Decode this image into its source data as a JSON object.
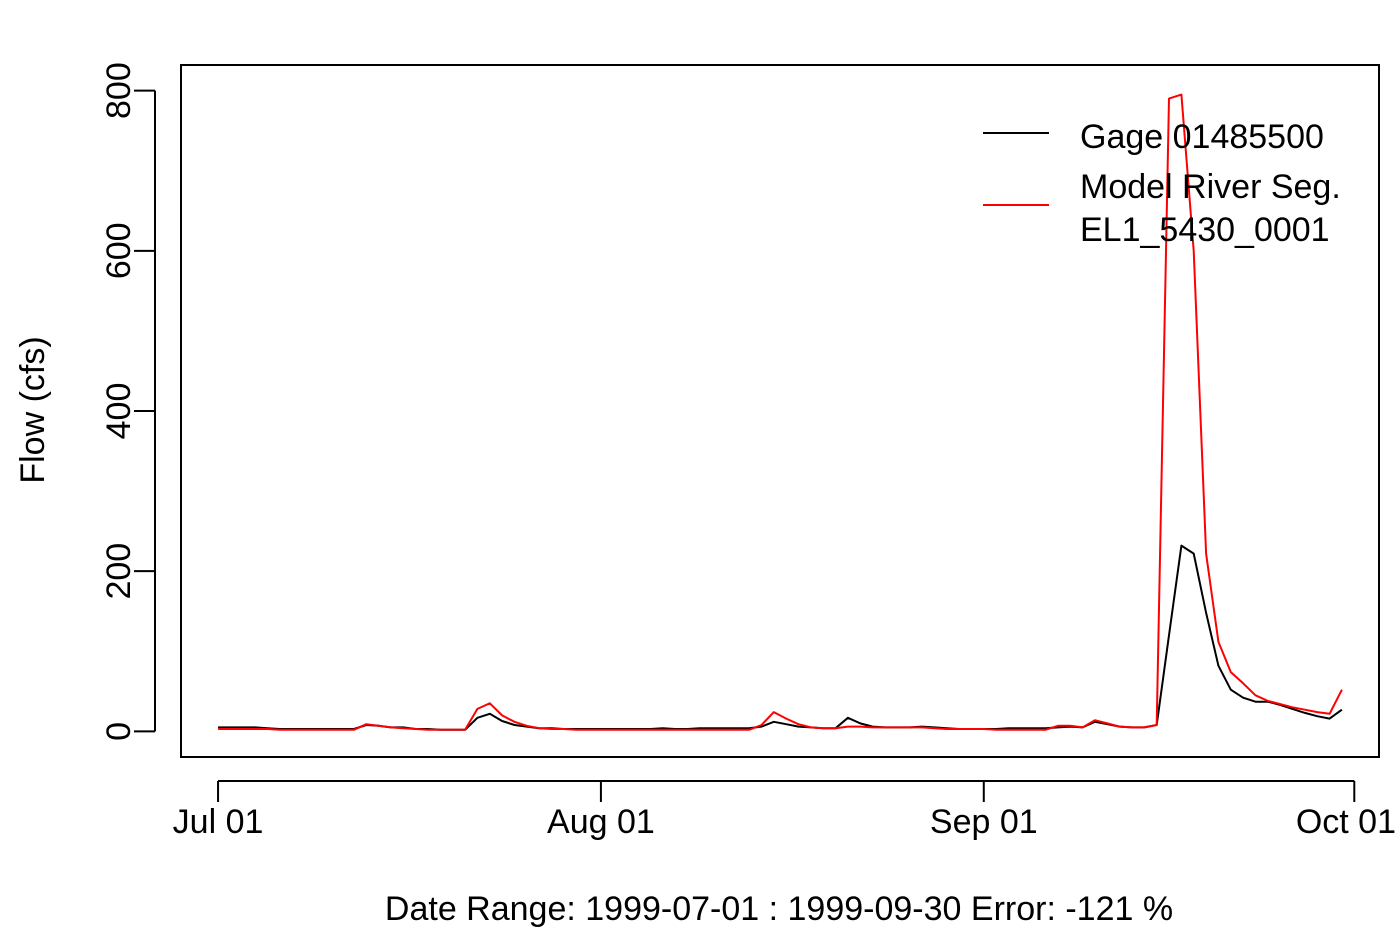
{
  "chart_data": {
    "type": "line",
    "title": "",
    "xlabel": "Date Range: 1999-07-01 : 1999-09-30   Error: -121 %",
    "ylabel": "Flow (cfs)",
    "x_ticks": [
      {
        "date": "1999-07-01",
        "label": "Jul 01"
      },
      {
        "date": "1999-08-01",
        "label": "Aug 01"
      },
      {
        "date": "1999-09-01",
        "label": "Sep 01"
      },
      {
        "date": "1999-10-01",
        "label": "Oct 01"
      }
    ],
    "y_ticks": [
      0,
      200,
      400,
      600,
      800
    ],
    "xlim": [
      "1999-06-28",
      "1999-10-03"
    ],
    "ylim": [
      -32,
      832
    ],
    "grid": false,
    "legend_position": "top-right",
    "series": [
      {
        "name": "Gage 01485500",
        "color": "#000000",
        "points": [
          [
            "1999-07-01",
            5
          ],
          [
            "1999-07-02",
            5
          ],
          [
            "1999-07-03",
            5
          ],
          [
            "1999-07-04",
            5
          ],
          [
            "1999-07-05",
            4
          ],
          [
            "1999-07-06",
            3
          ],
          [
            "1999-07-07",
            3
          ],
          [
            "1999-07-08",
            3
          ],
          [
            "1999-07-09",
            3
          ],
          [
            "1999-07-10",
            3
          ],
          [
            "1999-07-11",
            3
          ],
          [
            "1999-07-12",
            3
          ],
          [
            "1999-07-13",
            8
          ],
          [
            "1999-07-14",
            7
          ],
          [
            "1999-07-15",
            5
          ],
          [
            "1999-07-16",
            5
          ],
          [
            "1999-07-17",
            3
          ],
          [
            "1999-07-18",
            3
          ],
          [
            "1999-07-19",
            2
          ],
          [
            "1999-07-20",
            2
          ],
          [
            "1999-07-21",
            2
          ],
          [
            "1999-07-22",
            17
          ],
          [
            "1999-07-23",
            22
          ],
          [
            "1999-07-24",
            13
          ],
          [
            "1999-07-25",
            8
          ],
          [
            "1999-07-26",
            6
          ],
          [
            "1999-07-27",
            4
          ],
          [
            "1999-07-28",
            4
          ],
          [
            "1999-07-29",
            3
          ],
          [
            "1999-07-30",
            3
          ],
          [
            "1999-07-31",
            3
          ],
          [
            "1999-08-01",
            3
          ],
          [
            "1999-08-02",
            3
          ],
          [
            "1999-08-03",
            3
          ],
          [
            "1999-08-04",
            3
          ],
          [
            "1999-08-05",
            3
          ],
          [
            "1999-08-06",
            4
          ],
          [
            "1999-08-07",
            3
          ],
          [
            "1999-08-08",
            3
          ],
          [
            "1999-08-09",
            4
          ],
          [
            "1999-08-10",
            4
          ],
          [
            "1999-08-11",
            4
          ],
          [
            "1999-08-12",
            4
          ],
          [
            "1999-08-13",
            4
          ],
          [
            "1999-08-14",
            6
          ],
          [
            "1999-08-15",
            12
          ],
          [
            "1999-08-16",
            9
          ],
          [
            "1999-08-17",
            6
          ],
          [
            "1999-08-18",
            5
          ],
          [
            "1999-08-19",
            4
          ],
          [
            "1999-08-20",
            4
          ],
          [
            "1999-08-21",
            17
          ],
          [
            "1999-08-22",
            10
          ],
          [
            "1999-08-23",
            6
          ],
          [
            "1999-08-24",
            5
          ],
          [
            "1999-08-25",
            5
          ],
          [
            "1999-08-26",
            5
          ],
          [
            "1999-08-27",
            6
          ],
          [
            "1999-08-28",
            5
          ],
          [
            "1999-08-29",
            4
          ],
          [
            "1999-08-30",
            3
          ],
          [
            "1999-08-31",
            3
          ],
          [
            "1999-09-01",
            3
          ],
          [
            "1999-09-02",
            3
          ],
          [
            "1999-09-03",
            4
          ],
          [
            "1999-09-04",
            4
          ],
          [
            "1999-09-05",
            4
          ],
          [
            "1999-09-06",
            4
          ],
          [
            "1999-09-07",
            5
          ],
          [
            "1999-09-08",
            6
          ],
          [
            "1999-09-09",
            5
          ],
          [
            "1999-09-10",
            12
          ],
          [
            "1999-09-11",
            9
          ],
          [
            "1999-09-12",
            6
          ],
          [
            "1999-09-13",
            5
          ],
          [
            "1999-09-14",
            5
          ],
          [
            "1999-09-15",
            8
          ],
          [
            "1999-09-16",
            120
          ],
          [
            "1999-09-17",
            232
          ],
          [
            "1999-09-18",
            222
          ],
          [
            "1999-09-19",
            148
          ],
          [
            "1999-09-20",
            82
          ],
          [
            "1999-09-21",
            52
          ],
          [
            "1999-09-22",
            42
          ],
          [
            "1999-09-23",
            37
          ],
          [
            "1999-09-24",
            37
          ],
          [
            "1999-09-25",
            33
          ],
          [
            "1999-09-26",
            28
          ],
          [
            "1999-09-27",
            23
          ],
          [
            "1999-09-28",
            19
          ],
          [
            "1999-09-29",
            16
          ],
          [
            "1999-09-30",
            27
          ]
        ]
      },
      {
        "name": "Model River Seg.\n EL1_5430_0001",
        "color": "#ff0000",
        "points": [
          [
            "1999-07-01",
            3
          ],
          [
            "1999-07-02",
            3
          ],
          [
            "1999-07-03",
            3
          ],
          [
            "1999-07-04",
            3
          ],
          [
            "1999-07-05",
            3
          ],
          [
            "1999-07-06",
            2
          ],
          [
            "1999-07-07",
            2
          ],
          [
            "1999-07-08",
            2
          ],
          [
            "1999-07-09",
            2
          ],
          [
            "1999-07-10",
            2
          ],
          [
            "1999-07-11",
            2
          ],
          [
            "1999-07-12",
            2
          ],
          [
            "1999-07-13",
            9
          ],
          [
            "1999-07-14",
            7
          ],
          [
            "1999-07-15",
            5
          ],
          [
            "1999-07-16",
            4
          ],
          [
            "1999-07-17",
            3
          ],
          [
            "1999-07-18",
            2
          ],
          [
            "1999-07-19",
            2
          ],
          [
            "1999-07-20",
            2
          ],
          [
            "1999-07-21",
            2
          ],
          [
            "1999-07-22",
            28
          ],
          [
            "1999-07-23",
            35
          ],
          [
            "1999-07-24",
            20
          ],
          [
            "1999-07-25",
            12
          ],
          [
            "1999-07-26",
            7
          ],
          [
            "1999-07-27",
            4
          ],
          [
            "1999-07-28",
            3
          ],
          [
            "1999-07-29",
            3
          ],
          [
            "1999-07-30",
            2
          ],
          [
            "1999-07-31",
            2
          ],
          [
            "1999-08-01",
            2
          ],
          [
            "1999-08-02",
            2
          ],
          [
            "1999-08-03",
            2
          ],
          [
            "1999-08-04",
            2
          ],
          [
            "1999-08-05",
            2
          ],
          [
            "1999-08-06",
            2
          ],
          [
            "1999-08-07",
            2
          ],
          [
            "1999-08-08",
            2
          ],
          [
            "1999-08-09",
            2
          ],
          [
            "1999-08-10",
            2
          ],
          [
            "1999-08-11",
            2
          ],
          [
            "1999-08-12",
            2
          ],
          [
            "1999-08-13",
            2
          ],
          [
            "1999-08-14",
            8
          ],
          [
            "1999-08-15",
            24
          ],
          [
            "1999-08-16",
            16
          ],
          [
            "1999-08-17",
            9
          ],
          [
            "1999-08-18",
            5
          ],
          [
            "1999-08-19",
            4
          ],
          [
            "1999-08-20",
            4
          ],
          [
            "1999-08-21",
            6
          ],
          [
            "1999-08-22",
            6
          ],
          [
            "1999-08-23",
            5
          ],
          [
            "1999-08-24",
            5
          ],
          [
            "1999-08-25",
            5
          ],
          [
            "1999-08-26",
            5
          ],
          [
            "1999-08-27",
            5
          ],
          [
            "1999-08-28",
            4
          ],
          [
            "1999-08-29",
            3
          ],
          [
            "1999-08-30",
            3
          ],
          [
            "1999-08-31",
            3
          ],
          [
            "1999-09-01",
            3
          ],
          [
            "1999-09-02",
            2
          ],
          [
            "1999-09-03",
            2
          ],
          [
            "1999-09-04",
            2
          ],
          [
            "1999-09-05",
            2
          ],
          [
            "1999-09-06",
            2
          ],
          [
            "1999-09-07",
            7
          ],
          [
            "1999-09-08",
            7
          ],
          [
            "1999-09-09",
            5
          ],
          [
            "1999-09-10",
            14
          ],
          [
            "1999-09-11",
            10
          ],
          [
            "1999-09-12",
            6
          ],
          [
            "1999-09-13",
            5
          ],
          [
            "1999-09-14",
            5
          ],
          [
            "1999-09-15",
            8
          ],
          [
            "1999-09-16",
            790
          ],
          [
            "1999-09-17",
            795
          ],
          [
            "1999-09-18",
            600
          ],
          [
            "1999-09-19",
            222
          ],
          [
            "1999-09-20",
            112
          ],
          [
            "1999-09-21",
            74
          ],
          [
            "1999-09-22",
            60
          ],
          [
            "1999-09-23",
            45
          ],
          [
            "1999-09-24",
            38
          ],
          [
            "1999-09-25",
            34
          ],
          [
            "1999-09-26",
            30
          ],
          [
            "1999-09-27",
            27
          ],
          [
            "1999-09-28",
            24
          ],
          [
            "1999-09-29",
            22
          ],
          [
            "1999-09-30",
            52
          ]
        ]
      }
    ]
  }
}
